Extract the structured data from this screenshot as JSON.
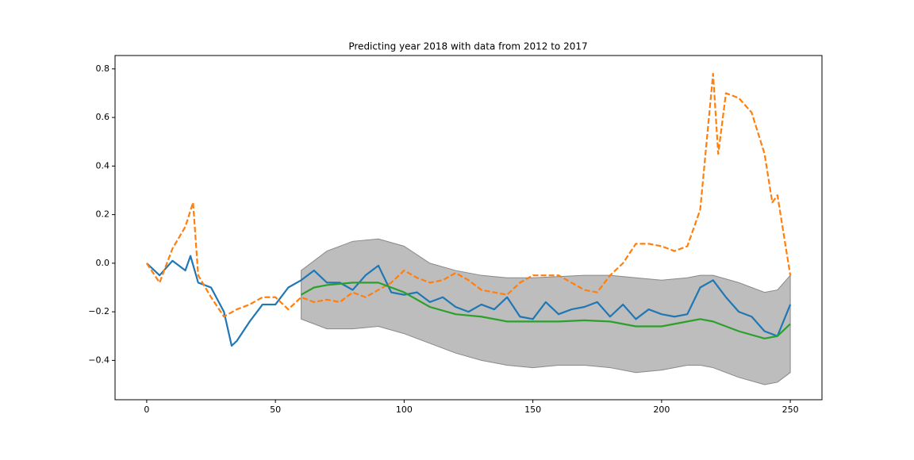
{
  "chart_data": {
    "type": "line",
    "title": "Predicting year 2018 with data from 2012 to 2017",
    "xlim": [
      -12.3,
      262.3
    ],
    "ylim": [
      -0.562,
      0.855
    ],
    "xticks": [
      0,
      50,
      100,
      150,
      200,
      250
    ],
    "yticks": [
      {
        "value": -0.4,
        "label": "−0.4"
      },
      {
        "value": -0.2,
        "label": "−0.2"
      },
      {
        "value": 0,
        "label": "0.0"
      },
      0.2,
      0.4,
      0.6,
      0.8
    ],
    "band": {
      "color": "#bdbdbd",
      "x": [
        60,
        70,
        80,
        90,
        100,
        110,
        120,
        130,
        140,
        150,
        160,
        170,
        180,
        190,
        200,
        210,
        215,
        220,
        230,
        240,
        245,
        250
      ],
      "upper": [
        -0.03,
        0.05,
        0.09,
        0.1,
        0.07,
        0.0,
        -0.03,
        -0.05,
        -0.06,
        -0.06,
        -0.055,
        -0.05,
        -0.05,
        -0.06,
        -0.07,
        -0.06,
        -0.05,
        -0.05,
        -0.08,
        -0.12,
        -0.11,
        -0.05
      ],
      "lower": [
        -0.23,
        -0.27,
        -0.27,
        -0.26,
        -0.29,
        -0.33,
        -0.37,
        -0.4,
        -0.42,
        -0.43,
        -0.42,
        -0.42,
        -0.43,
        -0.45,
        -0.44,
        -0.42,
        -0.42,
        -0.43,
        -0.47,
        -0.5,
        -0.49,
        -0.45
      ]
    },
    "series": [
      {
        "color": "#1f77b4",
        "dashed": false,
        "x": [
          0,
          5,
          10,
          15,
          17,
          20,
          25,
          30,
          33,
          35,
          40,
          45,
          50,
          55,
          60,
          65,
          70,
          75,
          80,
          85,
          90,
          95,
          100,
          105,
          110,
          115,
          120,
          125,
          130,
          135,
          140,
          145,
          150,
          155,
          160,
          165,
          170,
          175,
          180,
          185,
          190,
          195,
          200,
          205,
          210,
          215,
          220,
          225,
          230,
          235,
          240,
          245,
          250
        ],
        "values": [
          0.0,
          -0.05,
          0.01,
          -0.03,
          0.03,
          -0.08,
          -0.1,
          -0.2,
          -0.34,
          -0.32,
          -0.24,
          -0.17,
          -0.17,
          -0.1,
          -0.07,
          -0.03,
          -0.08,
          -0.08,
          -0.11,
          -0.05,
          -0.01,
          -0.12,
          -0.13,
          -0.12,
          -0.16,
          -0.14,
          -0.18,
          -0.2,
          -0.17,
          -0.19,
          -0.14,
          -0.22,
          -0.23,
          -0.16,
          -0.21,
          -0.19,
          -0.18,
          -0.16,
          -0.22,
          -0.17,
          -0.23,
          -0.19,
          -0.21,
          -0.22,
          -0.21,
          -0.1,
          -0.07,
          -0.14,
          -0.2,
          -0.22,
          -0.28,
          -0.3,
          -0.17
        ]
      },
      {
        "color": "#ff7f0e",
        "dashed": true,
        "x": [
          0,
          5,
          10,
          15,
          18,
          20,
          25,
          30,
          35,
          40,
          45,
          50,
          55,
          60,
          65,
          70,
          75,
          80,
          85,
          90,
          95,
          100,
          105,
          110,
          115,
          120,
          125,
          130,
          135,
          140,
          145,
          150,
          155,
          160,
          165,
          170,
          175,
          180,
          185,
          190,
          195,
          200,
          205,
          210,
          215,
          220,
          222,
          225,
          230,
          235,
          240,
          243,
          245,
          250
        ],
        "values": [
          0.0,
          -0.08,
          0.06,
          0.15,
          0.25,
          -0.05,
          -0.14,
          -0.22,
          -0.19,
          -0.17,
          -0.14,
          -0.14,
          -0.19,
          -0.14,
          -0.16,
          -0.15,
          -0.16,
          -0.12,
          -0.14,
          -0.11,
          -0.08,
          -0.03,
          -0.06,
          -0.08,
          -0.07,
          -0.04,
          -0.07,
          -0.11,
          -0.12,
          -0.13,
          -0.08,
          -0.05,
          -0.05,
          -0.05,
          -0.08,
          -0.11,
          -0.12,
          -0.05,
          0.0,
          0.08,
          0.08,
          0.07,
          0.05,
          0.07,
          0.22,
          0.78,
          0.45,
          0.7,
          0.68,
          0.62,
          0.45,
          0.25,
          0.28,
          -0.05
        ]
      },
      {
        "color": "#2ca02c",
        "dashed": false,
        "x": [
          60,
          65,
          70,
          80,
          90,
          100,
          110,
          120,
          130,
          140,
          150,
          160,
          170,
          180,
          190,
          200,
          210,
          215,
          220,
          230,
          240,
          245,
          250
        ],
        "values": [
          -0.13,
          -0.1,
          -0.09,
          -0.08,
          -0.08,
          -0.12,
          -0.18,
          -0.21,
          -0.22,
          -0.24,
          -0.24,
          -0.24,
          -0.235,
          -0.24,
          -0.26,
          -0.26,
          -0.24,
          -0.23,
          -0.24,
          -0.28,
          -0.31,
          -0.3,
          -0.25
        ]
      }
    ]
  }
}
